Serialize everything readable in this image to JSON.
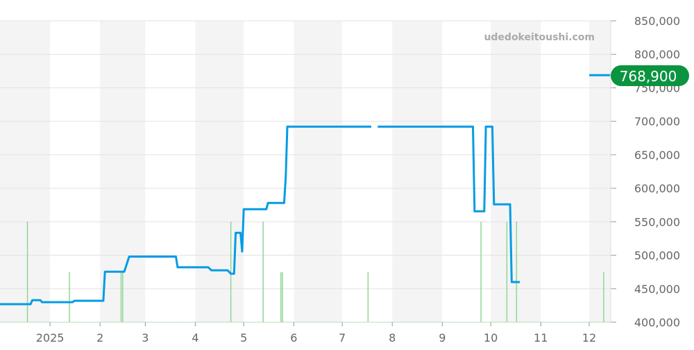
{
  "chart_data": {
    "type": "line",
    "watermark": "udedokeitoushi.com",
    "x_tick_labels": [
      "2025",
      "2",
      "3",
      "4",
      "5",
      "6",
      "7",
      "8",
      "9",
      "10",
      "11",
      "12"
    ],
    "x_tick_dates": [
      "2025-01-01",
      "2025-02-01",
      "2025-03-01",
      "2025-04-01",
      "2025-05-01",
      "2025-06-01",
      "2025-07-01",
      "2025-08-01",
      "2025-09-01",
      "2025-10-01",
      "2025-11-01",
      "2025-12-01"
    ],
    "xlim": [
      "2024-12-01",
      "2025-12-14"
    ],
    "ylim": [
      400000,
      850000
    ],
    "y_ticks": [
      400000,
      450000,
      500000,
      550000,
      600000,
      650000,
      700000,
      750000,
      800000,
      850000
    ],
    "y_tick_labels": [
      "400,000",
      "450,000",
      "500,000",
      "550,000",
      "600,000",
      "650,000",
      "700,000",
      "750,000",
      "800,000",
      "850,000"
    ],
    "grid": true,
    "alternating_month_bands": true,
    "current_value_label": "768,900",
    "colors": {
      "line": "#039be5",
      "volume": "#8fd694",
      "badge": "#0b9440",
      "band": "#f4f4f4"
    },
    "series": [
      {
        "segments": [
          [
            [
              "2024-12-01",
              427000
            ],
            [
              "2024-12-20",
              427000
            ],
            [
              "2024-12-21",
              433000
            ],
            [
              "2024-12-26",
              433000
            ],
            [
              "2024-12-27",
              430000
            ],
            [
              "2025-01-15",
              430000
            ],
            [
              "2025-01-16",
              432000
            ],
            [
              "2025-02-03",
              432000
            ],
            [
              "2025-02-04",
              475500
            ],
            [
              "2025-02-16",
              475500
            ],
            [
              "2025-02-19",
              498000
            ],
            [
              "2025-03-20",
              498000
            ],
            [
              "2025-03-21",
              482000
            ],
            [
              "2025-04-09",
              482000
            ],
            [
              "2025-04-11",
              477500
            ],
            [
              "2025-04-21",
              477500
            ],
            [
              "2025-04-23",
              472500
            ],
            [
              "2025-04-25",
              472500
            ],
            [
              "2025-04-26",
              533500
            ],
            [
              "2025-04-29",
              533500
            ],
            [
              "2025-04-30",
              505500
            ],
            [
              "2025-05-01",
              568700
            ],
            [
              "2025-05-15",
              568700
            ],
            [
              "2025-05-16",
              578000
            ],
            [
              "2025-05-26",
              578000
            ],
            [
              "2025-05-27",
              616000
            ],
            [
              "2025-05-28",
              692000
            ],
            [
              "2025-07-19",
              692000
            ]
          ],
          [
            [
              "2025-07-23",
              692000
            ],
            [
              "2025-09-20",
              692000
            ],
            [
              "2025-09-21",
              565600
            ],
            [
              "2025-09-27",
              565600
            ],
            [
              "2025-09-28",
              692000
            ],
            [
              "2025-10-02",
              692000
            ],
            [
              "2025-10-03",
              576000
            ],
            [
              "2025-10-13",
              576000
            ],
            [
              "2025-10-14",
              460000
            ],
            [
              "2025-10-19",
              460000
            ]
          ],
          [
            [
              "2025-12-01",
              768900
            ],
            [
              "2025-12-14",
              768900
            ]
          ]
        ]
      }
    ],
    "volume": [
      [
        "2024-12-18",
        2
      ],
      [
        "2025-01-13",
        1
      ],
      [
        "2025-02-14",
        1
      ],
      [
        "2025-02-15",
        1
      ],
      [
        "2025-04-23",
        2
      ],
      [
        "2025-05-13",
        2
      ],
      [
        "2025-05-24",
        1
      ],
      [
        "2025-05-25",
        1
      ],
      [
        "2025-07-17",
        1
      ],
      [
        "2025-09-25",
        2
      ],
      [
        "2025-10-11",
        2
      ],
      [
        "2025-10-17",
        2
      ],
      [
        "2025-12-10",
        1
      ]
    ]
  }
}
